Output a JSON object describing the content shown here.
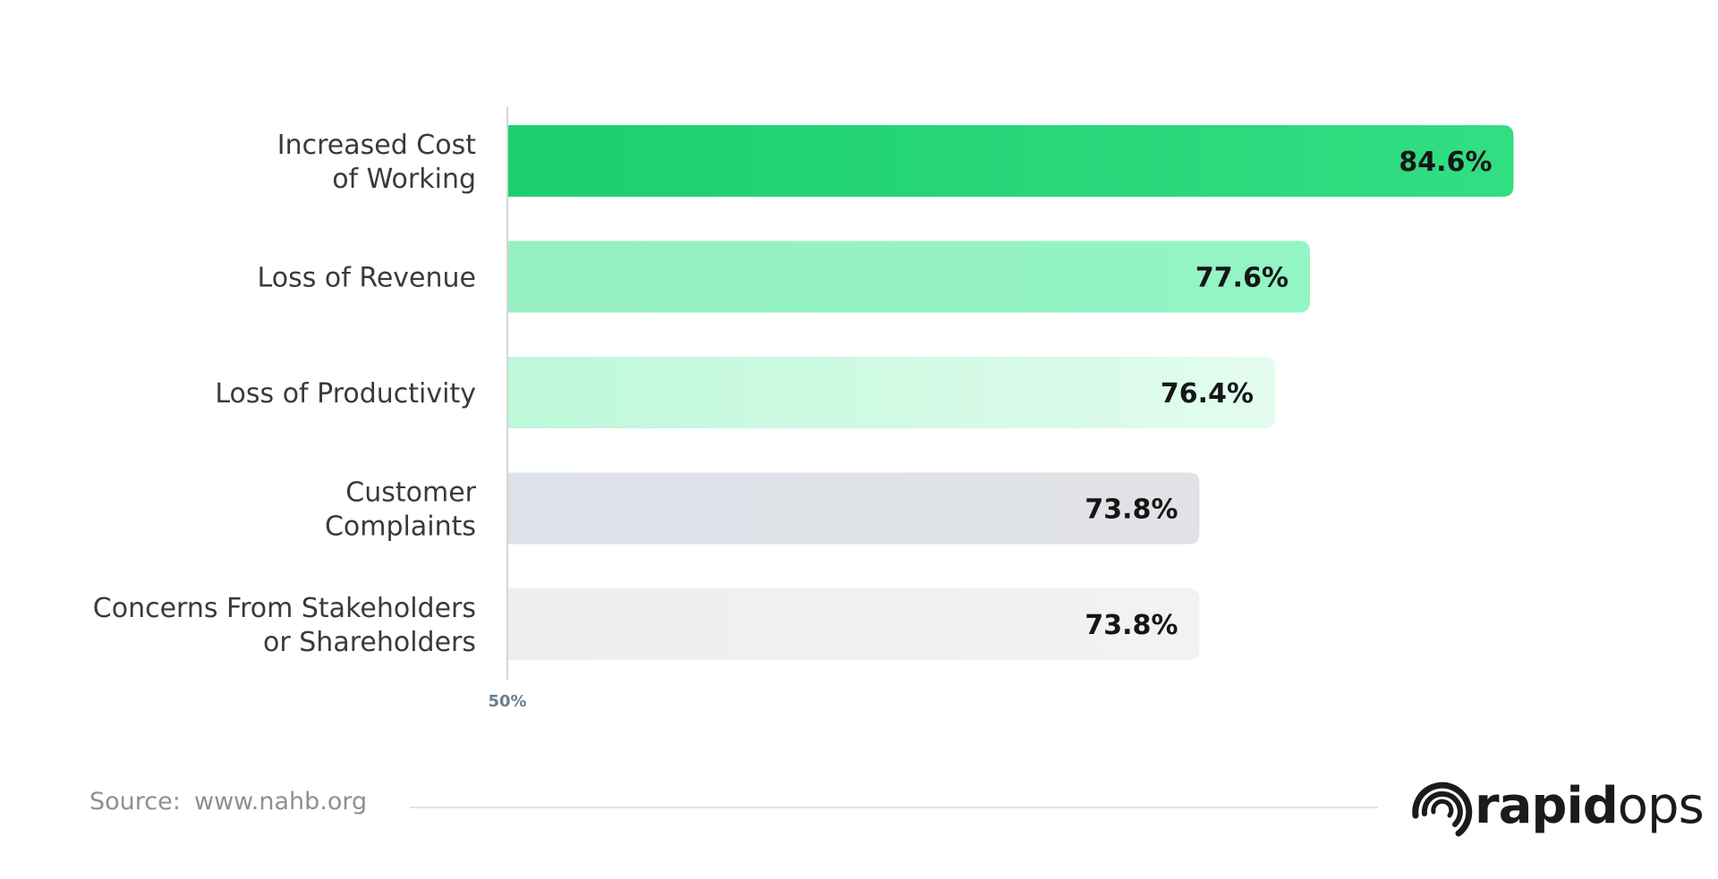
{
  "chart_data": {
    "type": "bar",
    "orientation": "horizontal",
    "categories": [
      [
        "Increased Cost",
        "of Working"
      ],
      [
        "Loss of Revenue"
      ],
      [
        "Loss of Productivity"
      ],
      [
        "Customer",
        "Complaints"
      ],
      [
        "Concerns From Stakeholders",
        "or Shareholders"
      ]
    ],
    "values": [
      84.6,
      77.6,
      76.4,
      73.8,
      73.8
    ],
    "value_labels": [
      "84.6%",
      "77.6%",
      "76.4%",
      "73.8%",
      "73.8%"
    ],
    "x_ticks": [
      "50%"
    ],
    "xlim": [
      50,
      100
    ],
    "grid": false,
    "legend": "none",
    "bar_colors": [
      [
        "#1ccf6e",
        "#32de82"
      ],
      [
        "#96f0c2",
        "#93f4c4"
      ],
      [
        "#bdf8d9",
        "#e3fcef"
      ],
      [
        "#dde1e8",
        "#e0e2e6"
      ],
      [
        "#eeeeef",
        "#f2f2f3"
      ]
    ]
  },
  "footer": {
    "source_label": "Source:",
    "source_url": "www.nahb.org"
  },
  "brand": {
    "name_bold": "rapid",
    "name_light": "ops",
    "logo_icon": "swirl-logo-icon"
  },
  "colors": {
    "axis": "#d6d6d6",
    "divider": "#e4e4e4",
    "text": "#3a3a3a"
  }
}
